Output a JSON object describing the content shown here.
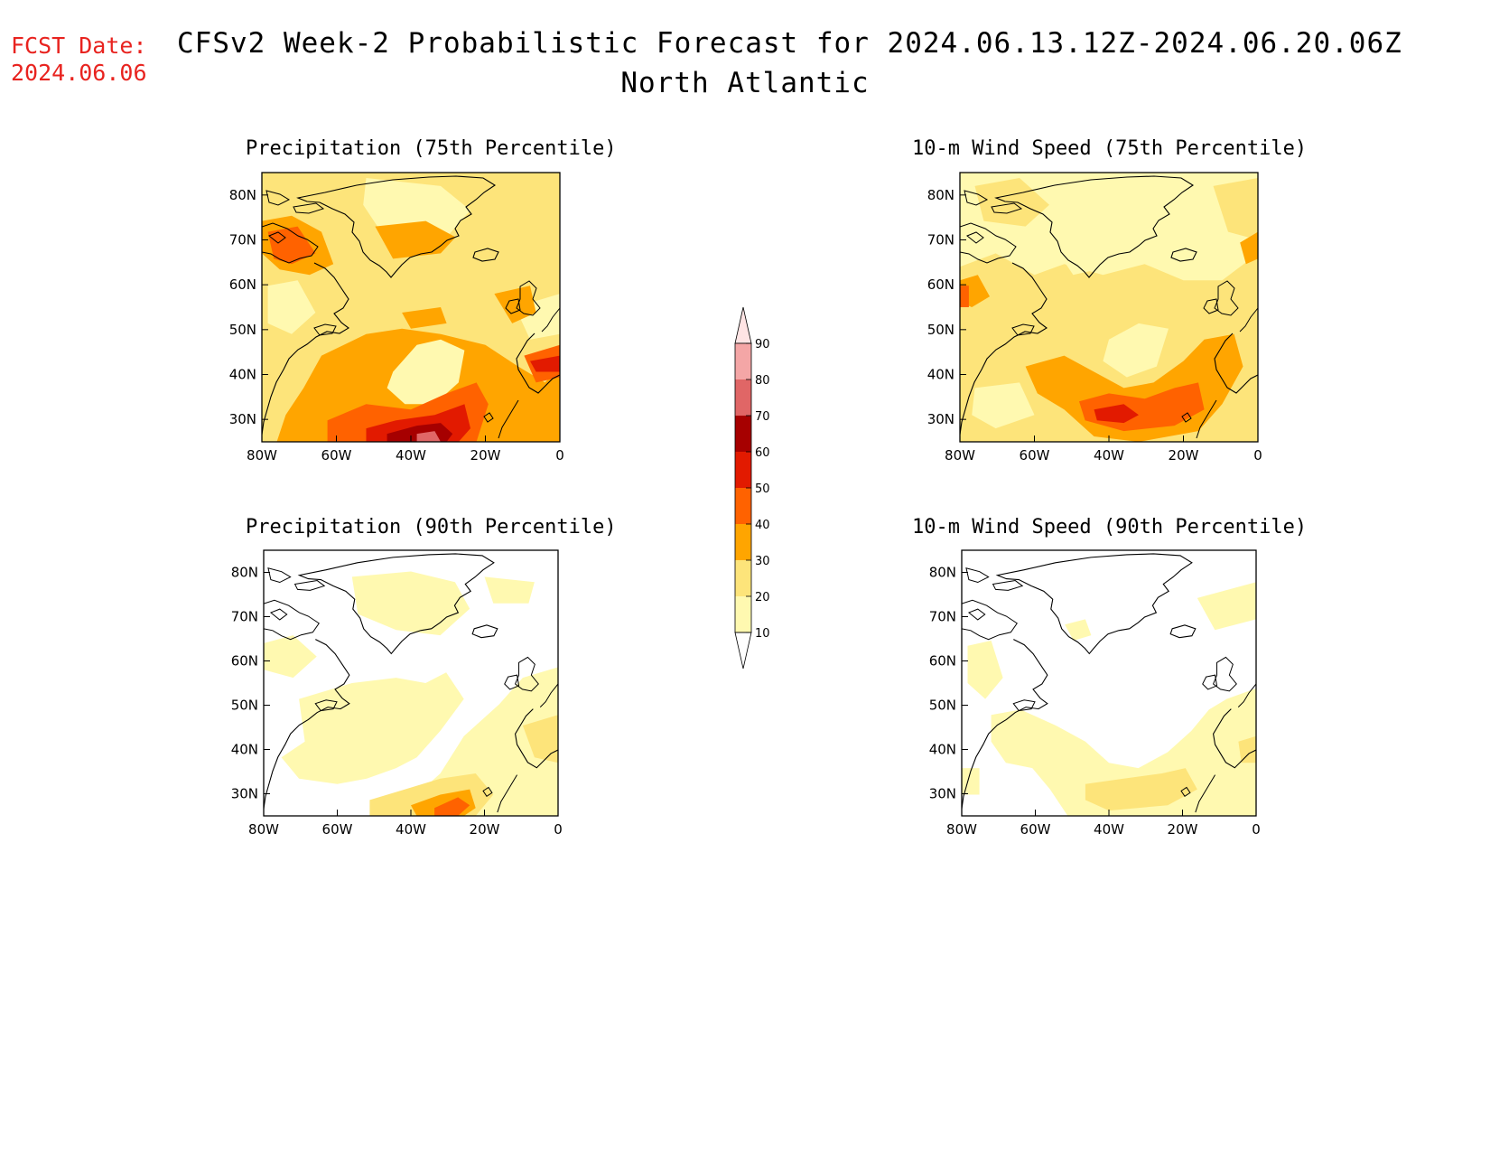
{
  "header": {
    "fcst_label": "FCST Date:",
    "fcst_date": "2024.06.06",
    "title": "CFSv2 Week-2 Probabilistic Forecast for 2024.06.13.12Z-2024.06.20.06Z",
    "region": "North Atlantic"
  },
  "panels": [
    {
      "id": "precip75",
      "title": "Precipitation (75th Percentile)"
    },
    {
      "id": "wind75",
      "title": "10-m Wind Speed (75th Percentile)"
    },
    {
      "id": "precip90",
      "title": "Precipitation (90th Percentile)"
    },
    {
      "id": "wind90",
      "title": "10-m Wind Speed (90th Percentile)"
    }
  ],
  "axes": {
    "lat_labels": [
      "80N",
      "70N",
      "60N",
      "50N",
      "40N",
      "30N"
    ],
    "lon_labels": [
      "80W",
      "60W",
      "40W",
      "20W",
      "0"
    ]
  },
  "colorbar": {
    "levels": [
      "10",
      "20",
      "30",
      "40",
      "50",
      "60",
      "70",
      "80",
      "90"
    ],
    "colors": [
      "#fff9b0",
      "#fde47a",
      "#ffa500",
      "#ff6200",
      "#e21a00",
      "#a60000",
      "#e06666",
      "#f4a6a6",
      "#ffe4e4"
    ]
  },
  "palette": {
    "c10": "#fff9b0",
    "c20": "#fde47a",
    "c30": "#ffa500",
    "c40": "#ff6200",
    "c50": "#e21a00",
    "c60": "#a60000",
    "c70": "#e06666",
    "c80": "#f4a6a6"
  }
}
